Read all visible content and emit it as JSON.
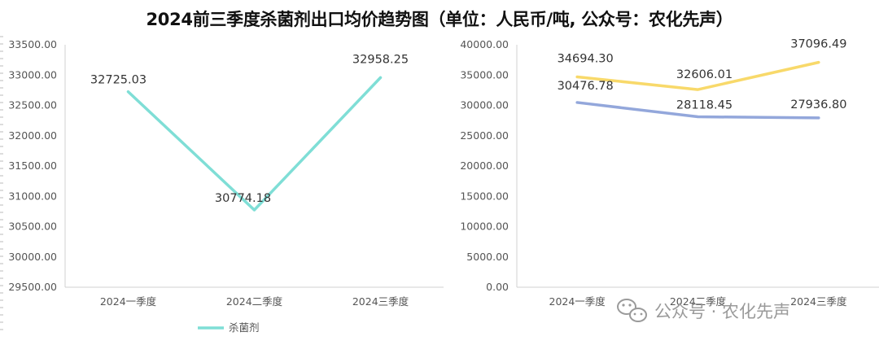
{
  "title": "2024前三季度杀菌剂出口均价趋势图（单位：人民币/吨, 公众号：农化先声）",
  "watermark": "公众号 · 农化先声",
  "chart_data": [
    {
      "type": "line",
      "categories": [
        "2024一季度",
        "2024二季度",
        "2024三季度"
      ],
      "series": [
        {
          "name": "杀菌剂",
          "values": [
            32725.03,
            30774.18,
            32958.25
          ],
          "color": "#7fded6"
        }
      ],
      "ylim": [
        29500,
        33500
      ],
      "yticks": [
        "29500.00",
        "30000.00",
        "30500.00",
        "31000.00",
        "31500.00",
        "32000.00",
        "32500.00",
        "33000.00",
        "33500.00"
      ],
      "data_labels": [
        "32725.03",
        "30774.18",
        "32958.25"
      ],
      "legend": "bottom",
      "grid": false
    },
    {
      "type": "line",
      "categories": [
        "2024一季度",
        "2024二季度",
        "2024三季度"
      ],
      "series": [
        {
          "values": [
            34694.3,
            32606.01,
            37096.49
          ],
          "color": "#f8d96a"
        },
        {
          "values": [
            30476.78,
            28118.45,
            27936.8
          ],
          "color": "#93a7db"
        }
      ],
      "ylim": [
        0,
        40000
      ],
      "yticks": [
        "0.00",
        "5000.00",
        "10000.00",
        "15000.00",
        "20000.00",
        "25000.00",
        "30000.00",
        "35000.00",
        "40000.00"
      ],
      "data_labels": [
        [
          "34694.30",
          "32606.01",
          "37096.49"
        ],
        [
          "30476.78",
          "28118.45",
          "27936.80"
        ]
      ],
      "grid": false
    }
  ]
}
